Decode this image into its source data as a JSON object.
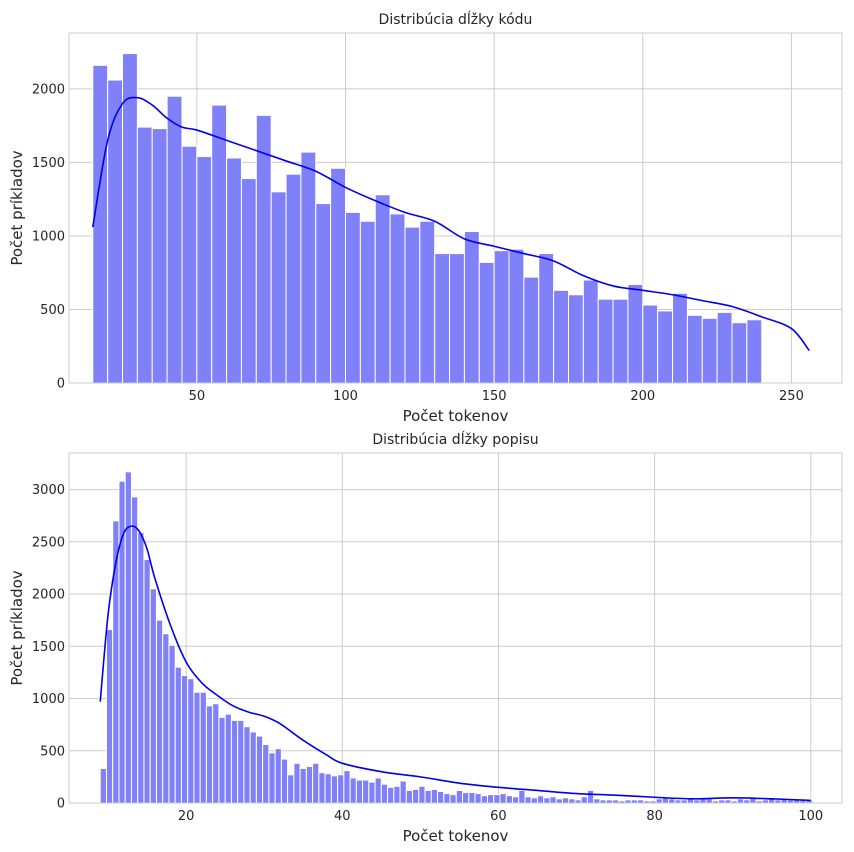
{
  "chart_data": [
    {
      "type": "bar",
      "title": "Distribúcia dĺžky kódu",
      "xlabel": "Počet tokenov",
      "ylabel": "Počet príkladov",
      "xlim": [
        7,
        267
      ],
      "ylim": [
        0,
        2380
      ],
      "xticks": [
        50,
        100,
        150,
        200,
        250
      ],
      "yticks": [
        0,
        500,
        1000,
        1500,
        2000
      ],
      "grid": true,
      "bar_color": "#8080f8",
      "kde_color": "#0000ee",
      "bin_start": 15,
      "bin_width": 5,
      "values": [
        2160,
        2060,
        2240,
        1740,
        1730,
        1950,
        1610,
        1540,
        1890,
        1530,
        1390,
        1820,
        1300,
        1420,
        1570,
        1220,
        1460,
        1160,
        1100,
        1280,
        1150,
        1060,
        1100,
        880,
        880,
        1030,
        820,
        900,
        910,
        720,
        880,
        630,
        600,
        700,
        570,
        570,
        670,
        530,
        490,
        610,
        460,
        440,
        480,
        410,
        430
      ],
      "kde_x": [
        15,
        20,
        25,
        30,
        35,
        40,
        45,
        50,
        60,
        70,
        80,
        90,
        100,
        110,
        120,
        130,
        140,
        150,
        160,
        170,
        180,
        190,
        200,
        210,
        220,
        230,
        240,
        250,
        256
      ],
      "kde_y": [
        1060,
        1650,
        1900,
        1940,
        1890,
        1800,
        1740,
        1720,
        1650,
        1580,
        1510,
        1440,
        1330,
        1240,
        1160,
        1100,
        980,
        930,
        880,
        830,
        730,
        660,
        630,
        600,
        560,
        520,
        450,
        370,
        220
      ]
    },
    {
      "type": "bar",
      "title": "Distribúcia dĺžky popisu",
      "xlabel": "Počet tokenov",
      "ylabel": "Počet príkladov",
      "xlim": [
        5,
        104
      ],
      "ylim": [
        0,
        3350
      ],
      "xticks": [
        20,
        40,
        60,
        80,
        100
      ],
      "yticks": [
        0,
        500,
        1000,
        1500,
        2000,
        2500,
        3000
      ],
      "grid": true,
      "bar_color": "#8080f8",
      "kde_color": "#0000ee",
      "bin_start": 9,
      "bin_width": 0.8,
      "values": [
        330,
        1660,
        2700,
        3080,
        3170,
        2930,
        2590,
        2330,
        2050,
        1750,
        1620,
        1510,
        1300,
        1220,
        1190,
        1060,
        1060,
        930,
        950,
        820,
        850,
        790,
        790,
        730,
        680,
        640,
        560,
        480,
        520,
        420,
        270,
        380,
        330,
        350,
        380,
        290,
        280,
        260,
        270,
        310,
        240,
        220,
        220,
        200,
        240,
        180,
        150,
        160,
        210,
        120,
        130,
        160,
        120,
        130,
        110,
        90,
        80,
        120,
        100,
        100,
        90,
        70,
        80,
        80,
        90,
        70,
        60,
        120,
        60,
        50,
        70,
        50,
        60,
        40,
        50,
        40,
        30,
        60,
        120,
        40,
        30,
        30,
        30,
        20,
        30,
        30,
        30,
        20,
        20,
        40,
        50,
        40,
        30,
        30,
        40,
        30,
        40,
        40,
        20,
        30,
        30,
        20,
        40,
        30,
        50,
        20,
        30,
        40,
        30,
        40,
        30,
        30,
        40,
        30
      ],
      "kde_x": [
        9,
        10,
        11,
        12,
        13,
        14,
        15,
        16,
        18,
        20,
        22,
        24,
        26,
        28,
        30,
        32,
        35,
        38,
        40,
        45,
        50,
        55,
        60,
        65,
        70,
        75,
        80,
        85,
        90,
        95,
        100
      ],
      "kde_y": [
        970,
        1800,
        2300,
        2580,
        2650,
        2600,
        2430,
        2150,
        1700,
        1350,
        1150,
        1030,
        930,
        870,
        830,
        760,
        600,
        460,
        380,
        300,
        250,
        190,
        150,
        120,
        90,
        75,
        55,
        40,
        50,
        40,
        25
      ]
    }
  ]
}
